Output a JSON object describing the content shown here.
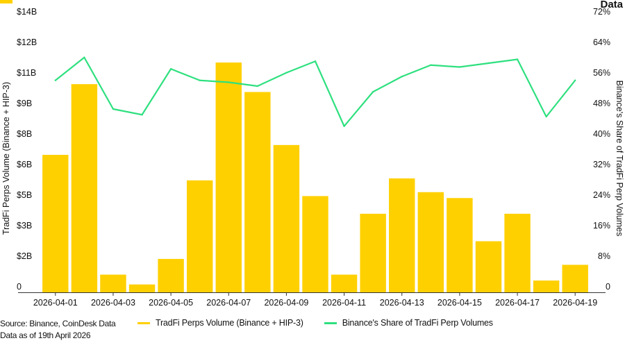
{
  "colors": {
    "bar": "#FFD000",
    "line": "#2EE07F",
    "axis": "#333333"
  },
  "corner_title_fragment": "Data",
  "footer": {
    "source": "Source: Binance, CoinDesk Data",
    "asof": "Data as of 19th April 2026"
  },
  "legend": {
    "bars_label": "TradFi Perps Volume (Binance + HIP-3)",
    "line_label": "Binance's Share of TradFi Perp Volumes"
  },
  "chart_data": {
    "type": "bar",
    "title": "",
    "ylabel": "TradFi Perps Volume (Binance + HIP-3)",
    "y2label": "Binance's Share of TradFi Perp Volumes",
    "ylim": [
      0,
      14
    ],
    "y2lim": [
      0,
      72
    ],
    "yticks": [
      "0",
      "$2B",
      "$3B",
      "$5B",
      "$6B",
      "$8B",
      "$9B",
      "$11B",
      "$12B",
      "$14B"
    ],
    "y2ticks": [
      "0",
      "8%",
      "16%",
      "24%",
      "32%",
      "40%",
      "48%",
      "56%",
      "64%",
      "72%"
    ],
    "x": [
      "2026-04-01",
      "2026-04-02",
      "2026-04-03",
      "2026-04-04",
      "2026-04-05",
      "2026-04-06",
      "2026-04-07",
      "2026-04-08",
      "2026-04-09",
      "2026-04-10",
      "2026-04-11",
      "2026-04-12",
      "2026-04-13",
      "2026-04-14",
      "2026-04-15",
      "2026-04-16",
      "2026-04-17",
      "2026-04-18",
      "2026-04-19"
    ],
    "xticks": [
      "2026-04-01",
      "2026-04-03",
      "2026-04-05",
      "2026-04-07",
      "2026-04-09",
      "2026-04-11",
      "2026-04-13",
      "2026-04-15",
      "2026-04-17",
      "2026-04-19"
    ],
    "series": [
      {
        "name": "TradFi Perps Volume (Binance + HIP-3)",
        "kind": "bar",
        "axis": "left",
        "values": [
          7.0,
          10.6,
          0.9,
          0.4,
          1.7,
          5.7,
          11.7,
          10.2,
          7.5,
          4.9,
          0.9,
          4.0,
          5.8,
          5.1,
          4.8,
          2.6,
          4.0,
          0.6,
          1.4
        ]
      },
      {
        "name": "Binance's Share of TradFi Perp Volumes",
        "kind": "line",
        "axis": "right",
        "values": [
          55.5,
          61.5,
          48.0,
          46.5,
          58.5,
          55.5,
          55.0,
          54.0,
          57.5,
          60.5,
          43.5,
          52.5,
          56.5,
          59.5,
          59.0,
          60.0,
          61.0,
          46.0,
          55.5
        ]
      }
    ],
    "grid": false,
    "legend_position": "bottom"
  }
}
